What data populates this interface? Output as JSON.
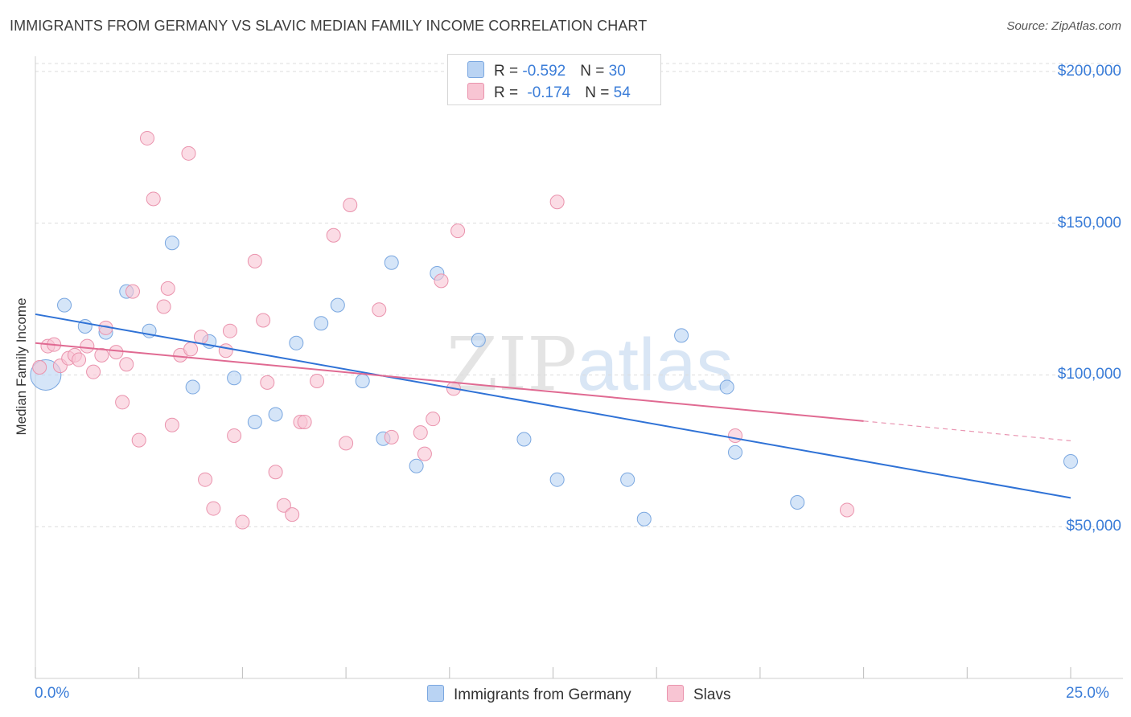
{
  "title": "IMMIGRANTS FROM GERMANY VS SLAVIC MEDIAN FAMILY INCOME CORRELATION CHART",
  "source": "Source: ZipAtlas.com",
  "watermark": {
    "zip": "ZIP",
    "atlas": "atlas"
  },
  "legend": {
    "germany": {
      "r_label": "R = ",
      "r_value": "-0.592",
      "n_label": "N = ",
      "n_value": "30"
    },
    "slavs": {
      "r_label": "R = ",
      "r_value": "-0.174",
      "n_label": "N = ",
      "n_value": "54"
    }
  },
  "colors": {
    "germany_fill": "#b9d3f3",
    "germany_stroke": "#7aa7e0",
    "germany_line": "#2f72d6",
    "slavs_fill": "#f8c5d3",
    "slavs_stroke": "#ea93ad",
    "slavs_line": "#e06a92",
    "tick_label": "#3b7dd8",
    "grid": "#dcdcdc"
  },
  "chart_data": {
    "type": "scatter",
    "title": "IMMIGRANTS FROM GERMANY VS SLAVIC MEDIAN FAMILY INCOME CORRELATION CHART",
    "xlabel": "",
    "ylabel": "Median Family Income",
    "xlim": [
      0,
      25
    ],
    "ylim": [
      0,
      205000
    ],
    "x_tick_labels": [
      "0.0%",
      "25.0%"
    ],
    "y_ticks": [
      50000,
      100000,
      150000,
      200000
    ],
    "y_tick_labels": [
      "$50,000",
      "$100,000",
      "$150,000",
      "$200,000"
    ],
    "grid": "horizontal dashed",
    "legend_position": "top-center",
    "series": [
      {
        "name": "Immigrants from Germany",
        "color_key": "germany",
        "points": [
          [
            0.25,
            100000,
            "large"
          ],
          [
            0.7,
            123000
          ],
          [
            1.2,
            116000
          ],
          [
            1.7,
            114000
          ],
          [
            2.2,
            127500
          ],
          [
            2.75,
            114500
          ],
          [
            3.3,
            143500
          ],
          [
            3.8,
            96000
          ],
          [
            4.2,
            111000
          ],
          [
            4.8,
            99000
          ],
          [
            5.3,
            84500
          ],
          [
            5.8,
            87000
          ],
          [
            6.3,
            110500
          ],
          [
            6.9,
            117000
          ],
          [
            7.3,
            123000
          ],
          [
            7.9,
            98000
          ],
          [
            8.4,
            79000
          ],
          [
            8.6,
            137000
          ],
          [
            9.2,
            70000
          ],
          [
            9.7,
            133500
          ],
          [
            10.7,
            111500
          ],
          [
            11.8,
            78800
          ],
          [
            12.6,
            65500
          ],
          [
            14.3,
            65500
          ],
          [
            14.7,
            52500
          ],
          [
            15.6,
            113000
          ],
          [
            16.7,
            96000
          ],
          [
            16.9,
            74500
          ],
          [
            18.4,
            58000
          ],
          [
            25.0,
            71500
          ]
        ],
        "trend": {
          "x0": 0,
          "y0": 120000,
          "x1": 25,
          "y1": 59500
        }
      },
      {
        "name": "Slavs",
        "color_key": "slavs",
        "points": [
          [
            0.1,
            102500
          ],
          [
            0.3,
            109500
          ],
          [
            0.45,
            110000
          ],
          [
            0.6,
            103000
          ],
          [
            0.8,
            105500
          ],
          [
            0.95,
            106500
          ],
          [
            1.05,
            105000
          ],
          [
            1.25,
            109500
          ],
          [
            1.4,
            101000
          ],
          [
            1.6,
            106500
          ],
          [
            1.7,
            115500
          ],
          [
            1.95,
            107500
          ],
          [
            2.1,
            91000
          ],
          [
            2.2,
            103500
          ],
          [
            2.35,
            127500
          ],
          [
            2.5,
            78500
          ],
          [
            2.7,
            178000
          ],
          [
            2.85,
            158000
          ],
          [
            3.1,
            122500
          ],
          [
            3.2,
            128500
          ],
          [
            3.3,
            83500
          ],
          [
            3.5,
            106500
          ],
          [
            3.7,
            173000
          ],
          [
            3.75,
            108500
          ],
          [
            4.0,
            112500
          ],
          [
            4.1,
            65500
          ],
          [
            4.3,
            56000
          ],
          [
            4.6,
            108000
          ],
          [
            4.7,
            114500
          ],
          [
            4.8,
            80000
          ],
          [
            5.0,
            51500
          ],
          [
            5.3,
            137500
          ],
          [
            5.5,
            118000
          ],
          [
            5.6,
            97500
          ],
          [
            5.8,
            68000
          ],
          [
            6.0,
            57000
          ],
          [
            6.2,
            54000
          ],
          [
            6.4,
            84500
          ],
          [
            6.5,
            84500
          ],
          [
            6.8,
            98000
          ],
          [
            7.2,
            146000
          ],
          [
            7.5,
            77500
          ],
          [
            7.6,
            156000
          ],
          [
            8.3,
            121500
          ],
          [
            8.6,
            79500
          ],
          [
            9.3,
            81000
          ],
          [
            9.4,
            74000
          ],
          [
            9.6,
            85500
          ],
          [
            9.8,
            131000
          ],
          [
            10.1,
            95500
          ],
          [
            10.2,
            147500
          ],
          [
            12.6,
            157000
          ],
          [
            16.9,
            80000
          ],
          [
            19.6,
            55500
          ]
        ],
        "trend": {
          "x0": 0,
          "y0": 110500,
          "x1": 20,
          "y1": 84800
        },
        "trend_dashed": {
          "x0": 20,
          "y0": 84800,
          "x1": 25,
          "y1": 78300
        }
      }
    ]
  },
  "bottom_legend": {
    "germany": "Immigrants from Germany",
    "slavs": "Slavs"
  }
}
